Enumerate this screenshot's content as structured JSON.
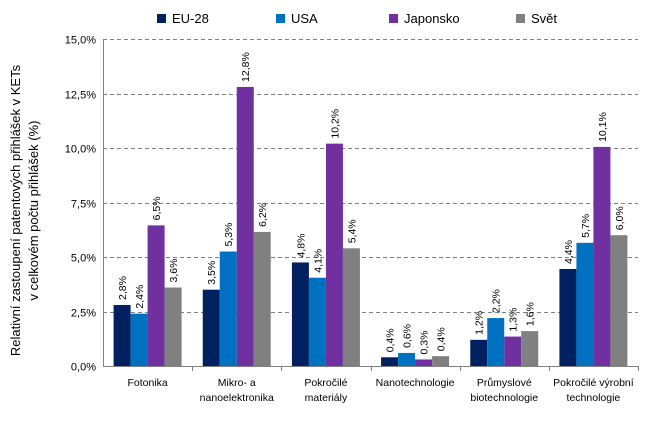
{
  "chart_data": {
    "type": "bar",
    "title": "",
    "xlabel": "",
    "ylabel_lines": [
      "Relativní zastoupení patentových přihlášek v KETs",
      "v celkovém počtu přihlášek  (%)"
    ],
    "ylim": [
      0,
      15
    ],
    "y_ticks": [
      0,
      2.5,
      5,
      7.5,
      10,
      12.5,
      15
    ],
    "y_tick_labels": [
      "0,0%",
      "2,5%",
      "5,0%",
      "7,5%",
      "10,0%",
      "12,5%",
      "15,0%"
    ],
    "grid": true,
    "legend_position": "top",
    "categories": [
      [
        "Fotonika"
      ],
      [
        "Mikro- a",
        "nanoelektronika"
      ],
      [
        "Pokročilé",
        "materiály"
      ],
      [
        "Nanotechnologie"
      ],
      [
        "Průmyslové",
        "biotechnologie"
      ],
      [
        "Pokročilé výrobní",
        "technologie"
      ]
    ],
    "series": [
      {
        "name": "EU-28",
        "color": "#002060",
        "values": [
          2.8,
          3.5,
          4.75,
          0.4,
          1.2,
          4.45
        ],
        "labels": [
          "2,8%",
          "3,5%",
          "4,8%",
          "0,4%",
          "1,2%",
          "4,4%"
        ]
      },
      {
        "name": "USA",
        "color": "#0070C0",
        "values": [
          2.4,
          5.25,
          4.05,
          0.6,
          2.2,
          5.65
        ],
        "labels": [
          "2,4%",
          "5,3%",
          "4,1%",
          "0,6%",
          "2,2%",
          "5,7%"
        ]
      },
      {
        "name": "Japonsko",
        "color": "#7030A0",
        "values": [
          6.45,
          12.8,
          10.2,
          0.3,
          1.35,
          10.05
        ],
        "labels": [
          "6,5%",
          "12,8%",
          "10,2%",
          "0,3%",
          "1,3%",
          "10,1%"
        ]
      },
      {
        "name": "Svět",
        "color": "#808080",
        "values": [
          3.6,
          6.15,
          5.4,
          0.45,
          1.6,
          6.0
        ],
        "labels": [
          "3,6%",
          "6,2%",
          "5,4%",
          "0,4%",
          "1,6%",
          "6,0%"
        ]
      }
    ]
  }
}
